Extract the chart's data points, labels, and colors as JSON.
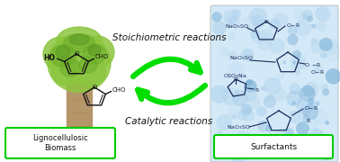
{
  "bg_color": "#ffffff",
  "tree_green_light": "#8cc63f",
  "tree_green_mid": "#6aaa2a",
  "tree_green_dark": "#4a8a1a",
  "trunk_color": "#b5956a",
  "root_color": "#8a6a3a",
  "arrow_color": "#00dd00",
  "box_edge_color": "#00cc00",
  "box_face": "#ffffff",
  "blue_bg": "#d4e9f7",
  "bubble_color": "#b0d4ee",
  "bubble_dark": "#7ab0d8",
  "struct_color": "#1a2a5a",
  "text_color": "#111111",
  "text_stoich": "Stoichiometric reactions",
  "text_catalytic": "Catalytic reactions",
  "text_biomass": "Lignocellulosic\nBiomass",
  "text_surfactants": "Surfactants"
}
